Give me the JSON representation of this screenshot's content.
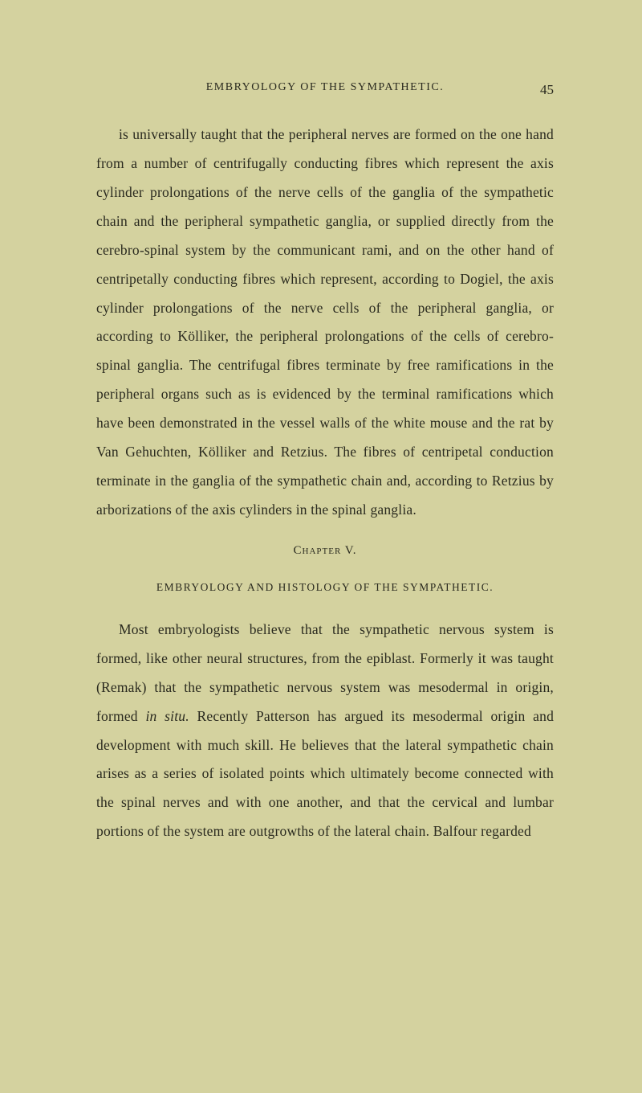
{
  "header": {
    "title": "EMBRYOLOGY OF THE SYMPATHETIC.",
    "page_number": "45"
  },
  "paragraph1": "is universally taught that the peripheral nerves are formed on the one hand from a number of centrifugally conducting fibres which represent the axis cylinder prolongations of the nerve cells of the ganglia of the sympathetic chain and the peripheral sympathetic ganglia, or supplied directly from the cerebro-spinal system by the communicant rami, and on the other hand of centripetally conducting fibres which represent, according to Dogiel, the axis cylinder prolongations of the nerve cells of the peripheral ganglia, or according to Kölliker, the peripheral prolongations of the cells of cerebro-spinal ganglia. The centrifugal fibres terminate by free ramifications in the peripheral organs such as is evidenced by the terminal ramifications which have been demonstrated in the vessel walls of the white mouse and the rat by Van Gehuchten, Kölliker and Retzius. The fibres of centripetal conduction terminate in the ganglia of the sympathetic chain and, according to Retzius by arborizations of the axis cylinders in the spinal ganglia.",
  "chapter_heading": "Chapter V.",
  "section_heading": "EMBRYOLOGY AND HISTOLOGY OF THE SYMPATHETIC.",
  "paragraph2_part1": "Most embryologists believe that the sympathetic nervous system is formed, like other neural structures, from the epiblast. Formerly it was taught (Remak) that the sympathetic nervous system was mesodermal in origin, formed ",
  "paragraph2_italic": "in situ.",
  "paragraph2_part2": " Recently Patterson has argued its mesodermal origin and development with much skill. He believes that the lateral sympathetic chain arises as a series of isolated points which ultimately become connected with the spinal nerves and with one another, and that the cervical and lumbar portions of the system are outgrowths of the lateral chain. Balfour regarded"
}
